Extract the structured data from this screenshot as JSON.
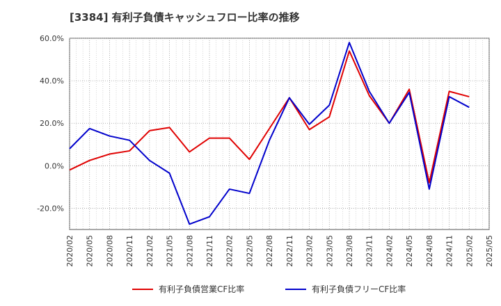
{
  "chart_data": {
    "type": "line",
    "title": "[3384]  有利子負債キャッシュフロー比率の推移",
    "xlabel": "",
    "ylabel": "",
    "ylim": [
      -30,
      60
    ],
    "yticks": [
      -20,
      0,
      20,
      40,
      60
    ],
    "ytick_labels": [
      "-20.0%",
      "0.0%",
      "20.0%",
      "40.0%",
      "60.0%"
    ],
    "x_tick_labels": [
      "2020/02",
      "2020/05",
      "2020/08",
      "2020/11",
      "2021/02",
      "2021/05",
      "2021/08",
      "2021/11",
      "2022/02",
      "2022/05",
      "2022/08",
      "2022/11",
      "2023/02",
      "2023/05",
      "2023/08",
      "2023/11",
      "2024/02",
      "2024/05",
      "2024/08",
      "2024/11",
      "2025/02",
      "2025/05"
    ],
    "grid": true,
    "legend_position": "bottom",
    "series": [
      {
        "name": "有利子負債営業CF比率",
        "color": "#e00000",
        "values": [
          -2.0,
          2.5,
          5.5,
          7.0,
          16.5,
          18.0,
          6.5,
          13.0,
          13.0,
          3.0,
          17.5,
          32.0,
          17.0,
          23.0,
          54.0,
          33.0,
          20.0,
          36.0,
          -8.0,
          35.0,
          32.5,
          null
        ]
      },
      {
        "name": "有利子負債フリーCF比率",
        "color": "#0000cc",
        "values": [
          8.0,
          17.5,
          14.0,
          12.0,
          2.5,
          -3.5,
          -27.5,
          -24.0,
          -11.0,
          -13.0,
          12.0,
          32.0,
          19.5,
          28.5,
          58.0,
          35.0,
          20.0,
          34.5,
          -11.0,
          32.5,
          27.5,
          null
        ]
      }
    ]
  }
}
